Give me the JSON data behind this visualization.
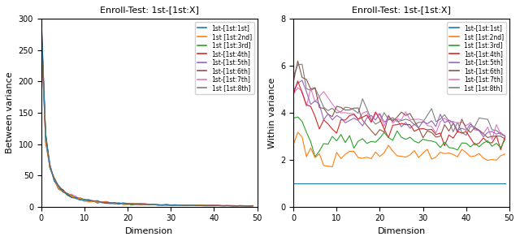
{
  "title": "Enroll-Test: 1st-[1st:X]",
  "legend_labels": [
    "1st-[1st:1st]",
    "1st [1st:2nd]",
    "1st [1st:3rd]",
    "1st-[1st:4th]",
    "1st-[1st:5th]",
    "1st-[1st:6th]",
    "1st-[1st:7th]",
    "1st [1st:8th]"
  ],
  "colors": [
    "#1f77b4",
    "#ff7f0e",
    "#2ca02c",
    "#d62728",
    "#9467bd",
    "#8c564b",
    "#e377c2",
    "#7f7f7f"
  ],
  "n_dims": 50,
  "xlabel": "Dimension",
  "ylabel_left": "Between variance",
  "ylabel_right": "Within variance",
  "between_ylim": [
    0,
    300
  ],
  "within_ylim": [
    0,
    8
  ],
  "between_yticks": [
    0,
    50,
    100,
    150,
    200,
    250,
    300
  ],
  "within_yticks": [
    0,
    2,
    4,
    6,
    8
  ],
  "figsize": [
    6.4,
    2.97
  ],
  "dpi": 100
}
